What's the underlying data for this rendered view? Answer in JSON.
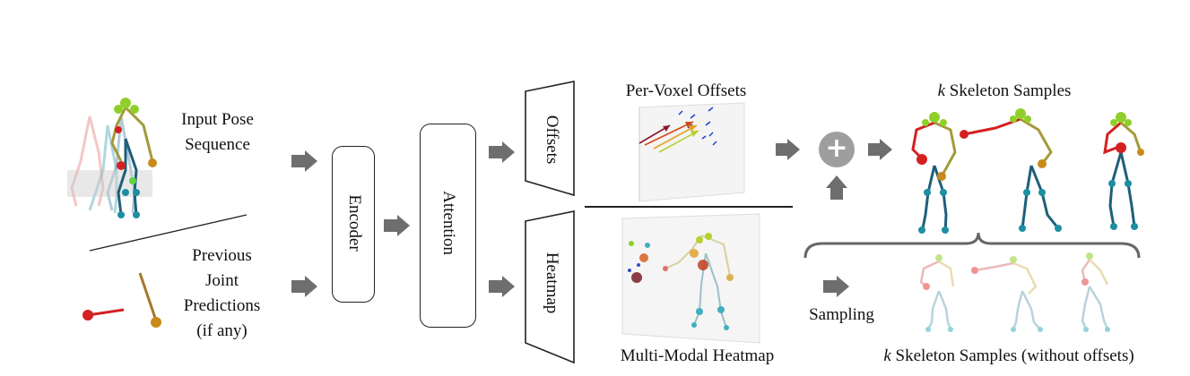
{
  "labels": {
    "input_pose_line1": "Input Pose",
    "input_pose_line2": "Sequence",
    "prev_line1": "Previous",
    "prev_line2": "Joint",
    "prev_line3": "Predictions",
    "prev_line4": "(if any)",
    "encoder": "Encoder",
    "attention": "Attention",
    "offsets": "Offsets",
    "heatmap": "Heatmap",
    "per_voxel_offsets": "Per-Voxel Offsets",
    "multi_modal_heatmap": "Multi-Modal Heatmap",
    "k_symbol": "k",
    "skeleton_samples": " Skeleton Samples",
    "skeleton_samples_without": " Skeleton Samples (without offsets)",
    "sampling": "Sampling",
    "plus_symbol": "+"
  },
  "colors": {
    "arrow": "#6e6e6e",
    "plus_circle": "#9e9e9e",
    "joint_red": "#d42020",
    "joint_orange": "#c98a1a",
    "joint_lime": "#8fcf2a",
    "joint_teal": "#1d8fa3",
    "bone_blue": "#1e5f7a",
    "bone_olive": "#a49a3a"
  }
}
